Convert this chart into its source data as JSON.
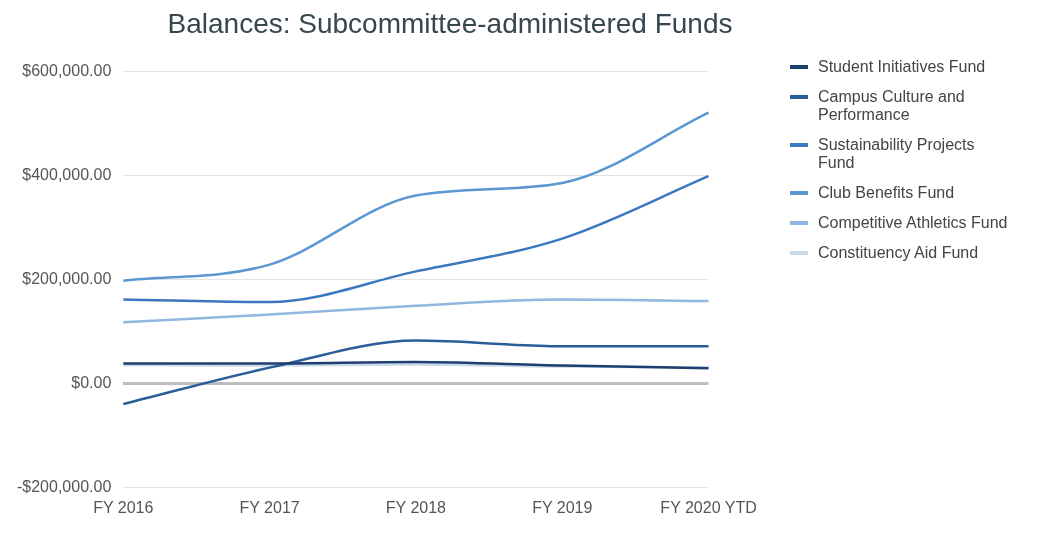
{
  "chart_data": {
    "type": "line",
    "title": "Balances: Subcommittee-administered Funds",
    "categories": [
      "FY 2016",
      "FY 2017",
      "FY 2018",
      "FY 2019",
      "FY 2020 YTD"
    ],
    "series": [
      {
        "name": "Student Initiatives Fund",
        "color": "#1c3f6e",
        "values": [
          39000,
          39000,
          42000,
          35000,
          30000
        ]
      },
      {
        "name": "Campus Culture and Performance",
        "color": "#2b5d99",
        "values": [
          -39000,
          31000,
          83000,
          72000,
          72000
        ]
      },
      {
        "name": "Sustainability Projects Fund",
        "color": "#3a78bf",
        "values": [
          162000,
          157000,
          216000,
          279000,
          399000
        ]
      },
      {
        "name": "Club Benefits Fund",
        "color": "#5b97d1",
        "values": [
          198000,
          229000,
          362000,
          386000,
          521000
        ]
      },
      {
        "name": "Competitive Athletics Fund",
        "color": "#8fb7e0",
        "values": [
          118000,
          133000,
          150000,
          162000,
          159000
        ]
      },
      {
        "name": "Constituency Aid Fund",
        "color": "#c9d9e8",
        "values": [
          36000,
          35000,
          37000,
          33000,
          31000
        ]
      }
    ],
    "ylim": [
      -200000,
      600000
    ],
    "yticks": [
      {
        "value": -200000,
        "label": "-$200,000.00"
      },
      {
        "value": 0,
        "label": "$0.00"
      },
      {
        "value": 200000,
        "label": "$200,000.00"
      },
      {
        "value": 400000,
        "label": "$400,000.00"
      },
      {
        "value": 600000,
        "label": "$600,000.00"
      }
    ],
    "grid": "y",
    "legend": "right",
    "marker": "none",
    "line_style": "solid"
  }
}
